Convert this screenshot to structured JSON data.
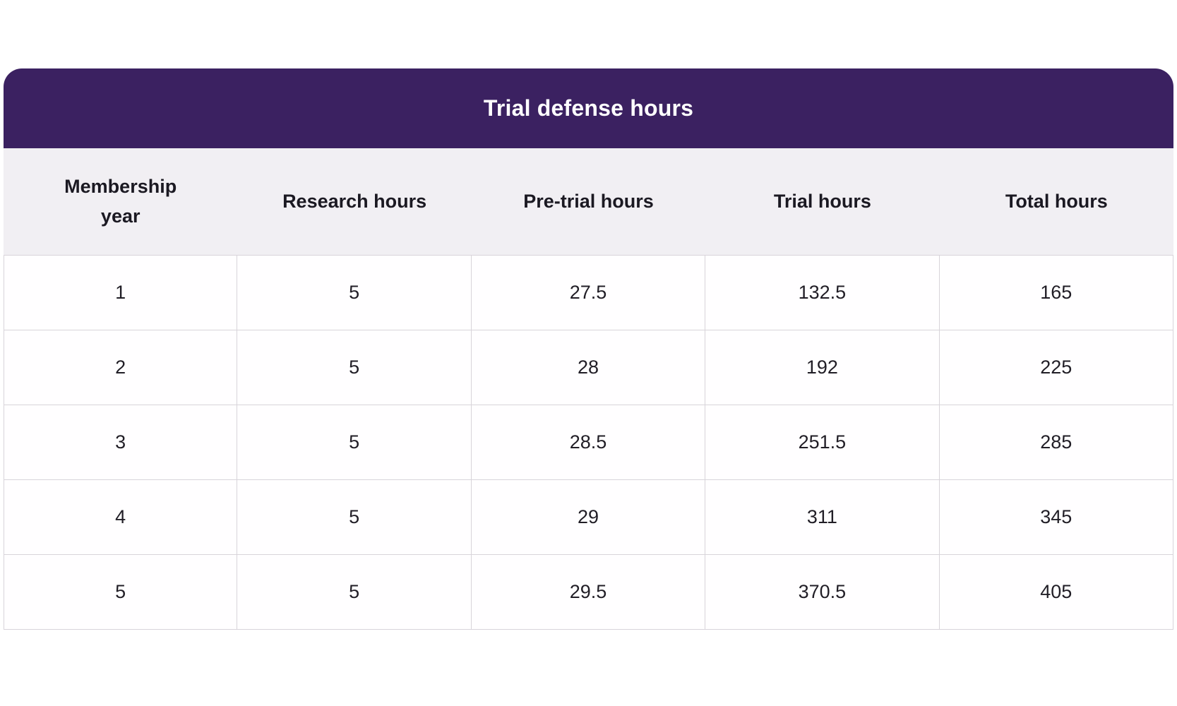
{
  "chart_data": {
    "type": "table",
    "title": "Trial defense hours",
    "columns": [
      "Membership year",
      "Research hours",
      "Pre-trial hours",
      "Trial hours",
      "Total hours"
    ],
    "rows": [
      [
        "1",
        "5",
        "27.5",
        "132.5",
        "165"
      ],
      [
        "2",
        "5",
        "28",
        "192",
        "225"
      ],
      [
        "3",
        "5",
        "28.5",
        "251.5",
        "285"
      ],
      [
        "4",
        "5",
        "29",
        "311",
        "345"
      ],
      [
        "5",
        "5",
        "29.5",
        "370.5",
        "405"
      ]
    ]
  },
  "colors": {
    "title_bar_bg": "#3b2161",
    "title_text": "#ffffff",
    "column_header_bg": "#f1eff3",
    "cell_bg": "#fffeff",
    "border": "#d8d4da",
    "text": "#211e26"
  }
}
